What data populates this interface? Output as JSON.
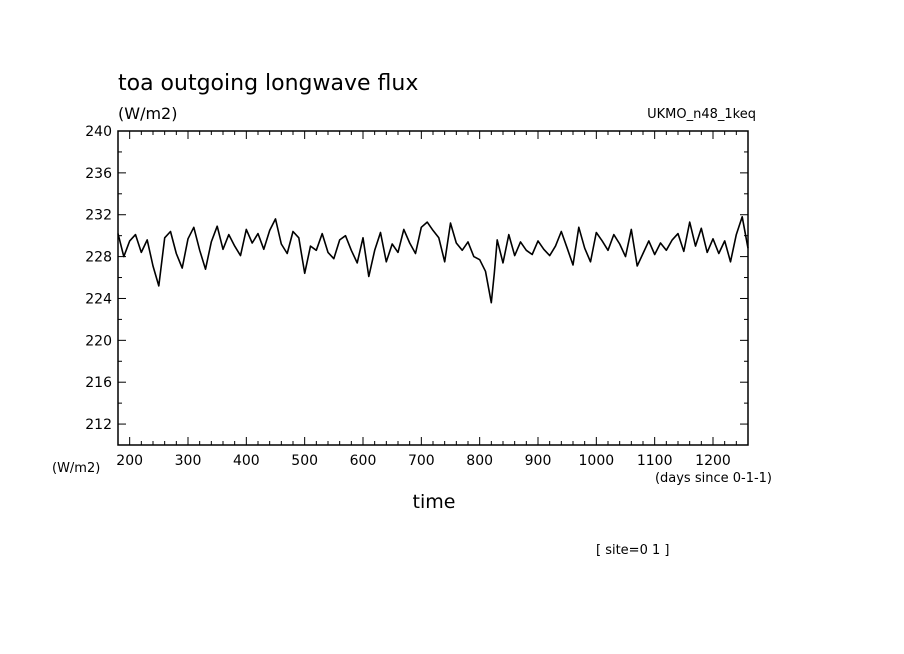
{
  "chart_data": {
    "type": "line",
    "title": "toa outgoing longwave flux",
    "subtitle": "(W/m2)",
    "run_label": "UKMO_n48_1keq",
    "xlabel": "time",
    "x_units": "(days since 0-1-1)",
    "y_units": "(W/m2)",
    "footnote": "[ site=0 1 ]",
    "xlim": [
      180,
      1260
    ],
    "ylim": [
      210,
      240
    ],
    "x_ticks": [
      200,
      300,
      400,
      500,
      600,
      700,
      800,
      900,
      1000,
      1100,
      1200
    ],
    "y_ticks": [
      212,
      216,
      220,
      224,
      228,
      232,
      236,
      240
    ],
    "grid": false,
    "line_color": "#000000",
    "series": [
      {
        "x": [
          180,
          190,
          200,
          210,
          220,
          230,
          240,
          250,
          260,
          270,
          280,
          290,
          300,
          310,
          320,
          330,
          340,
          350,
          360,
          370,
          380,
          390,
          400,
          410,
          420,
          430,
          440,
          450,
          460,
          470,
          480,
          490,
          500,
          510,
          520,
          530,
          540,
          550,
          560,
          570,
          580,
          590,
          600,
          610,
          620,
          630,
          640,
          650,
          660,
          670,
          680,
          690,
          700,
          710,
          720,
          730,
          740,
          750,
          760,
          770,
          780,
          790,
          800,
          810,
          820,
          825,
          830,
          840,
          850,
          860,
          870,
          880,
          890,
          900,
          910,
          920,
          930,
          940,
          950,
          960,
          970,
          980,
          990,
          1000,
          1010,
          1020,
          1030,
          1040,
          1050,
          1060,
          1070,
          1080,
          1090,
          1100,
          1110,
          1120,
          1130,
          1140,
          1150,
          1160,
          1170,
          1180,
          1190,
          1200,
          1210,
          1220,
          1230,
          1240,
          1250,
          1260
        ],
        "values": [
          230.2,
          228.0,
          229.5,
          230.1,
          228.4,
          229.6,
          227.1,
          225.2,
          229.8,
          230.4,
          228.3,
          226.9,
          229.7,
          230.8,
          228.6,
          226.8,
          229.4,
          230.9,
          228.7,
          230.1,
          229.0,
          228.1,
          230.6,
          229.3,
          230.2,
          228.7,
          230.5,
          231.6,
          229.2,
          228.3,
          230.4,
          229.8,
          226.4,
          229.0,
          228.6,
          230.2,
          228.4,
          227.8,
          229.6,
          230.0,
          228.6,
          227.4,
          229.8,
          226.1,
          228.6,
          230.3,
          227.5,
          229.2,
          228.4,
          230.6,
          229.3,
          228.3,
          230.8,
          231.3,
          230.5,
          229.8,
          227.5,
          231.2,
          229.3,
          228.6,
          229.4,
          228.0,
          227.7,
          226.6,
          223.6,
          226.4,
          229.6,
          227.4,
          230.1,
          228.1,
          229.4,
          228.6,
          228.2,
          229.5,
          228.7,
          228.1,
          229.0,
          230.4,
          228.8,
          227.2,
          230.8,
          228.8,
          227.5,
          230.3,
          229.5,
          228.6,
          230.1,
          229.2,
          228.0,
          230.6,
          227.1,
          228.3,
          229.5,
          228.2,
          229.3,
          228.6,
          229.6,
          230.2,
          228.5,
          231.3,
          229.0,
          230.7,
          228.4,
          229.7,
          228.3,
          229.5,
          227.5,
          230.1,
          231.8,
          228.8
        ]
      }
    ]
  }
}
